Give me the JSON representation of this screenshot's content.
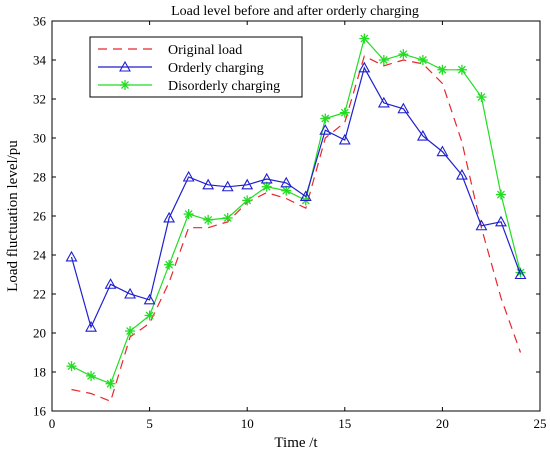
{
  "chart_data": {
    "type": "line",
    "title": "Load level before and after orderly charging",
    "xlabel": "Time /t",
    "ylabel": "Load fluctuation level/pu",
    "xlim": [
      0,
      25
    ],
    "ylim": [
      16,
      36
    ],
    "xticks": [
      0,
      5,
      10,
      15,
      20,
      25
    ],
    "yticks": [
      16,
      18,
      20,
      22,
      24,
      26,
      28,
      30,
      32,
      34,
      36
    ],
    "grid": false,
    "legend_position": "top-left",
    "x": [
      1,
      2,
      3,
      4,
      5,
      6,
      7,
      8,
      9,
      10,
      11,
      12,
      13,
      14,
      15,
      16,
      17,
      18,
      19,
      20,
      21,
      22,
      23,
      24
    ],
    "series": [
      {
        "name": "Original load",
        "color": "#e8282e",
        "style": "dashed",
        "marker": "none",
        "values": [
          17.1,
          16.9,
          16.5,
          19.8,
          20.5,
          22.6,
          25.4,
          25.4,
          25.7,
          26.7,
          27.2,
          26.9,
          26.4,
          30.0,
          30.8,
          34.2,
          33.7,
          34.0,
          33.8,
          32.8,
          29.8,
          25.4,
          21.8,
          19.0
        ]
      },
      {
        "name": "Orderly charging",
        "color": "#1f1fd0",
        "style": "solid",
        "marker": "triangle",
        "values": [
          23.9,
          20.3,
          22.5,
          22.0,
          21.7,
          25.9,
          28.0,
          27.6,
          27.5,
          27.6,
          27.9,
          27.7,
          27.0,
          30.4,
          29.9,
          33.6,
          31.8,
          31.5,
          30.1,
          29.3,
          28.1,
          25.5,
          25.7,
          23.0
        ]
      },
      {
        "name": "Disorderly charging",
        "color": "#22dd22",
        "style": "solid",
        "marker": "star",
        "values": [
          18.3,
          17.8,
          17.4,
          20.1,
          20.9,
          23.5,
          26.1,
          25.8,
          25.9,
          26.8,
          27.5,
          27.3,
          26.8,
          31.0,
          31.3,
          35.1,
          34.0,
          34.3,
          34.0,
          33.5,
          33.5,
          32.1,
          27.1,
          23.1
        ]
      }
    ]
  }
}
